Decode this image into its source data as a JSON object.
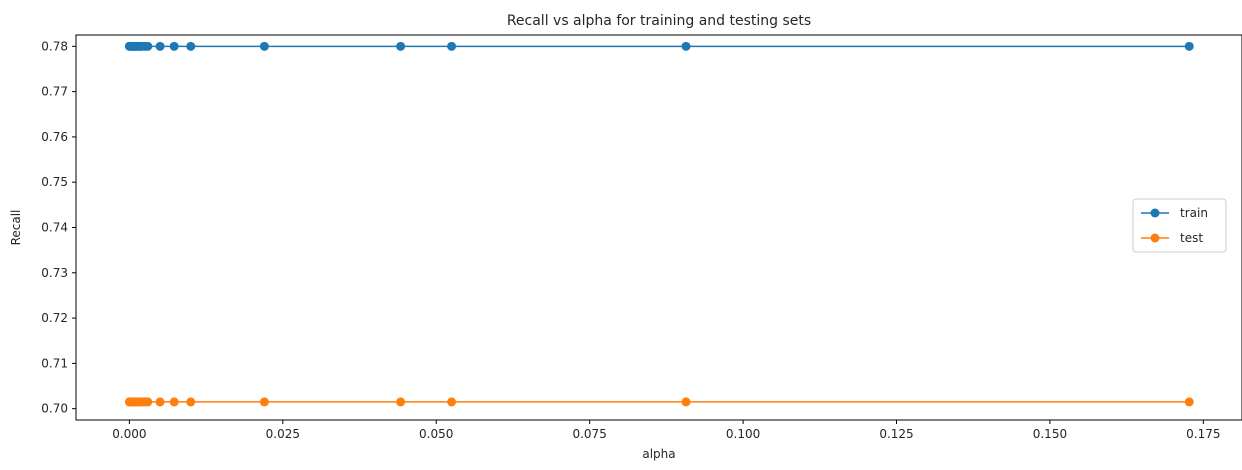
{
  "chart_data": {
    "type": "line",
    "title": "Recall vs alpha for training and testing sets",
    "xlabel": "alpha",
    "ylabel": "Recall",
    "xlim": [
      -0.0087,
      0.1813
    ],
    "ylim": [
      0.6975,
      0.7825
    ],
    "xticks": [
      "0.000",
      "0.025",
      "0.050",
      "0.075",
      "0.100",
      "0.125",
      "0.150",
      "0.175"
    ],
    "xtick_values": [
      0.0,
      0.025,
      0.05,
      0.075,
      0.1,
      0.125,
      0.15,
      0.175
    ],
    "yticks": [
      "0.70",
      "0.71",
      "0.72",
      "0.73",
      "0.74",
      "0.75",
      "0.76",
      "0.77",
      "0.78"
    ],
    "ytick_values": [
      0.7,
      0.71,
      0.72,
      0.73,
      0.74,
      0.75,
      0.76,
      0.77,
      0.78
    ],
    "legend_position": "center-right",
    "grid": false,
    "x": [
      0.0,
      0.0002,
      0.0004,
      0.0006,
      0.0008,
      0.001,
      0.0012,
      0.0015,
      0.0018,
      0.002,
      0.0025,
      0.003,
      0.005,
      0.0073,
      0.01,
      0.022,
      0.0442,
      0.0525,
      0.0907,
      0.1727
    ],
    "series": [
      {
        "name": "train",
        "color": "#1f77b4",
        "values": [
          0.78,
          0.78,
          0.78,
          0.78,
          0.78,
          0.78,
          0.78,
          0.78,
          0.78,
          0.78,
          0.78,
          0.78,
          0.78,
          0.78,
          0.78,
          0.78,
          0.78,
          0.78,
          0.78,
          0.78
        ]
      },
      {
        "name": "test",
        "color": "#ff7f0e",
        "values": [
          0.7015,
          0.7015,
          0.7015,
          0.7015,
          0.7015,
          0.7015,
          0.7015,
          0.7015,
          0.7015,
          0.7015,
          0.7015,
          0.7015,
          0.7015,
          0.7015,
          0.7015,
          0.7015,
          0.7015,
          0.7015,
          0.7015,
          0.7015
        ]
      }
    ]
  }
}
